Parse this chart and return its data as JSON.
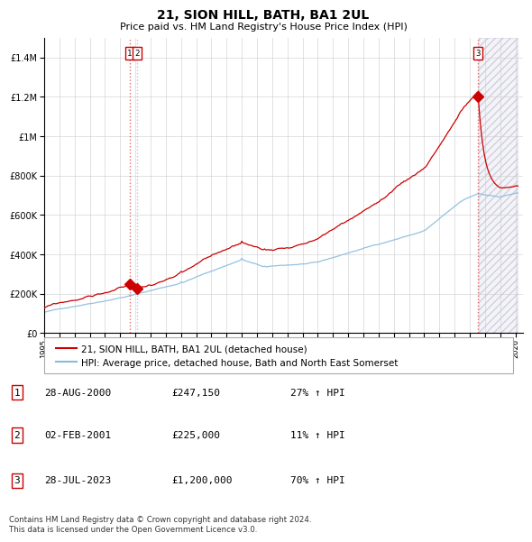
{
  "title": "21, SION HILL, BATH, BA1 2UL",
  "subtitle": "Price paid vs. HM Land Registry's House Price Index (HPI)",
  "ylim": [
    0,
    1500000
  ],
  "yticks": [
    0,
    200000,
    400000,
    600000,
    800000,
    1000000,
    1200000,
    1400000
  ],
  "ytick_labels": [
    "£0",
    "£200K",
    "£400K",
    "£600K",
    "£800K",
    "£1M",
    "£1.2M",
    "£1.4M"
  ],
  "sale_dates_num": [
    2000.635,
    2001.085,
    2023.555
  ],
  "sale_prices": [
    247150,
    225000,
    1200000
  ],
  "sale_labels": [
    "1",
    "2",
    "3"
  ],
  "red_line_color": "#cc0000",
  "blue_line_color": "#88bbdd",
  "sale_marker_color": "#cc0000",
  "grid_color": "#cccccc",
  "legend_label_red": "21, SION HILL, BATH, BA1 2UL (detached house)",
  "legend_label_blue": "HPI: Average price, detached house, Bath and North East Somerset",
  "table_rows": [
    [
      "1",
      "28-AUG-2000",
      "£247,150",
      "27% ↑ HPI"
    ],
    [
      "2",
      "02-FEB-2001",
      "£225,000",
      "11% ↑ HPI"
    ],
    [
      "3",
      "28-JUL-2023",
      "£1,200,000",
      "70% ↑ HPI"
    ]
  ],
  "footnote": "Contains HM Land Registry data © Crown copyright and database right 2024.\nThis data is licensed under the Open Government Licence v3.0."
}
